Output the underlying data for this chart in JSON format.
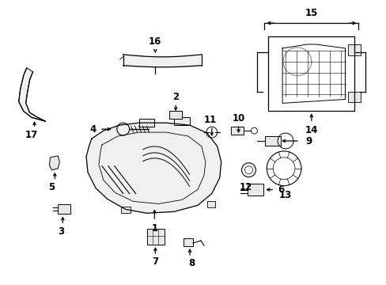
{
  "bg_color": "#ffffff",
  "line_color": "#000000",
  "text_color": "#000000",
  "font_size": 8.5,
  "figsize": [
    4.89,
    3.6
  ],
  "dpi": 100
}
